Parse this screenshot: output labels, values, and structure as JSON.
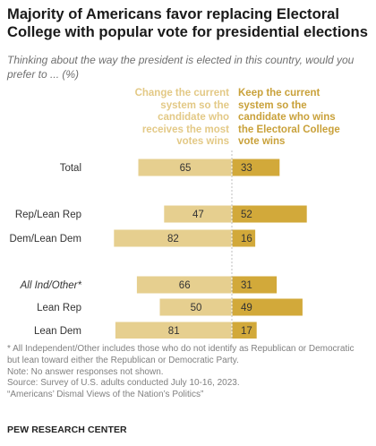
{
  "title": "Majority of Americans favor replacing Electoral College with popular vote for presidential elections",
  "subtitle": "Thinking about the way the president is elected in this country, would you prefer to ... (%)",
  "chart_data": {
    "type": "bar",
    "orientation": "horizontal-diverging",
    "series": [
      {
        "name": "Change the current system so the candidate who receives the most votes wins",
        "color": "#e6cf8f",
        "values": [
          65,
          47,
          82,
          66,
          50,
          81
        ]
      },
      {
        "name": "Keep the current system so the candidate who wins the Electoral College vote wins",
        "color": "#d2a93a",
        "values": [
          33,
          52,
          16,
          31,
          49,
          17
        ]
      }
    ],
    "categories": [
      "Total",
      "Rep/Lean Rep",
      "Dem/Lean Dem",
      "All Ind/Other*",
      "Lean Rep",
      "Lean Dem"
    ],
    "category_italic": [
      false,
      false,
      false,
      true,
      false,
      false
    ],
    "legend": "top"
  },
  "notes": [
    "* All Independent/Other includes those who do not identify as Republican or Democratic but lean toward either the Republican or Democratic Party.",
    "Note: No answer responses not shown.",
    "Source: Survey of U.S. adults conducted July 10-16, 2023.",
    "“Americans’ Dismal Views of the Nation’s Politics”"
  ],
  "org": "PEW RESEARCH CENTER"
}
